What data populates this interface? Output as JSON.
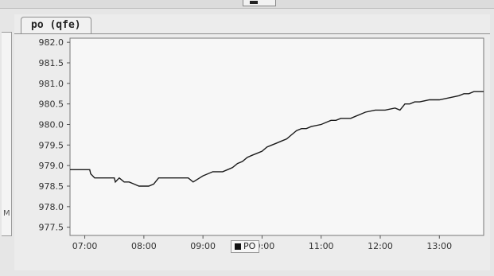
{
  "window": {
    "tab_label": "po (qfe)",
    "left_panel_fragment": "M"
  },
  "chart_data": {
    "type": "line",
    "title": "",
    "xlabel": "",
    "ylabel": "",
    "x_ticks": [
      "07:00",
      "08:00",
      "09:00",
      "10:00",
      "11:00",
      "12:00",
      "13:00"
    ],
    "y_ticks": [
      "977.5",
      "978.0",
      "978.5",
      "979.0",
      "979.5",
      "980.0",
      "980.5",
      "981.0",
      "981.5",
      "982.0"
    ],
    "xlim": [
      "06:45",
      "13:45"
    ],
    "ylim": [
      977.3,
      982.1
    ],
    "grid": false,
    "legend": "bottom-center",
    "series": [
      {
        "name": "PO",
        "color": "#1a1a1a",
        "x": [
          "06:45",
          "07:05",
          "07:06",
          "07:10",
          "07:30",
          "07:31",
          "07:35",
          "07:40",
          "07:45",
          "07:50",
          "07:55",
          "08:00",
          "08:05",
          "08:10",
          "08:15",
          "08:30",
          "08:45",
          "08:50",
          "09:00",
          "09:10",
          "09:20",
          "09:25",
          "09:30",
          "09:35",
          "09:40",
          "09:45",
          "09:50",
          "09:55",
          "10:00",
          "10:05",
          "10:10",
          "10:15",
          "10:20",
          "10:25",
          "10:30",
          "10:35",
          "10:40",
          "10:45",
          "10:50",
          "11:00",
          "11:05",
          "11:10",
          "11:15",
          "11:20",
          "11:30",
          "11:35",
          "11:40",
          "11:45",
          "11:55",
          "12:05",
          "12:15",
          "12:20",
          "12:25",
          "12:30",
          "12:35",
          "12:40",
          "12:50",
          "13:00",
          "13:10",
          "13:20",
          "13:25",
          "13:30",
          "13:35",
          "13:45"
        ],
        "y": [
          978.9,
          978.9,
          978.8,
          978.7,
          978.7,
          978.6,
          978.7,
          978.6,
          978.6,
          978.55,
          978.5,
          978.5,
          978.5,
          978.55,
          978.7,
          978.7,
          978.7,
          978.6,
          978.75,
          978.85,
          978.85,
          978.9,
          978.95,
          979.05,
          979.1,
          979.2,
          979.25,
          979.3,
          979.35,
          979.45,
          979.5,
          979.55,
          979.6,
          979.65,
          979.75,
          979.85,
          979.9,
          979.9,
          979.95,
          980.0,
          980.05,
          980.1,
          980.1,
          980.15,
          980.15,
          980.2,
          980.25,
          980.3,
          980.35,
          980.35,
          980.4,
          980.35,
          980.5,
          980.5,
          980.55,
          980.55,
          980.6,
          980.6,
          980.65,
          980.7,
          980.75,
          980.75,
          980.8,
          980.8
        ]
      }
    ]
  }
}
